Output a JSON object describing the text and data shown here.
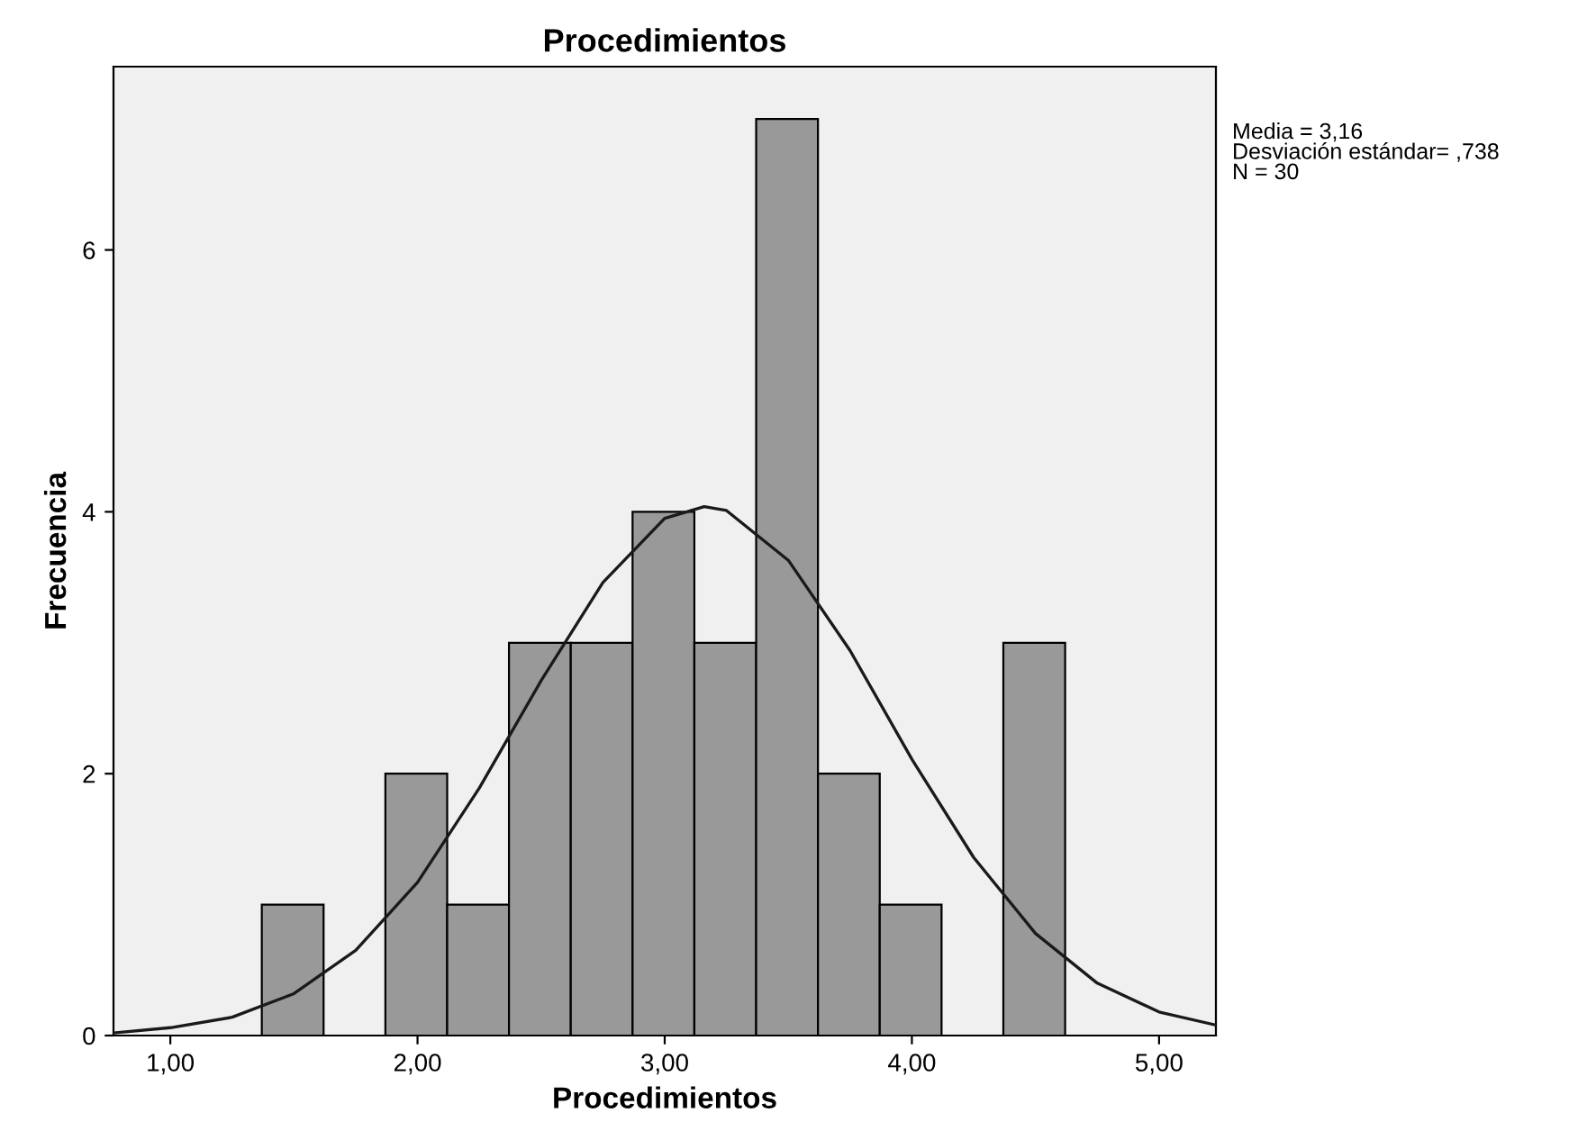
{
  "chart_data": {
    "type": "histogram",
    "title": "Procedimientos",
    "xlabel": "Procedimientos",
    "ylabel": "Frecuencia",
    "bins": [
      1.37,
      1.62,
      1.87,
      2.12,
      2.37,
      2.62,
      2.87,
      3.12,
      3.37,
      3.62,
      3.87,
      4.12,
      4.37,
      4.62
    ],
    "values": [
      1,
      0,
      2,
      1,
      3,
      3,
      4,
      3,
      7,
      2,
      1,
      0,
      3
    ],
    "color": "#999999",
    "series": [
      {
        "type": "line",
        "color": "#1a1a1a",
        "x": [
          0.77,
          1.0,
          1.25,
          1.5,
          1.75,
          2.0,
          2.25,
          2.5,
          2.75,
          3.0,
          3.16,
          3.25,
          3.5,
          3.75,
          4.0,
          4.25,
          4.5,
          4.75,
          5.0,
          5.23
        ],
        "values": [
          0.02,
          0.06,
          0.14,
          0.32,
          0.65,
          1.17,
          1.89,
          2.71,
          3.46,
          3.95,
          4.04,
          4.01,
          3.63,
          2.94,
          2.11,
          1.36,
          0.78,
          0.4,
          0.18,
          0.08
        ]
      }
    ],
    "xlim": [
      0.77,
      5.23
    ],
    "ylim": [
      0,
      7.4
    ],
    "xticks": [
      {
        "value": 1,
        "label": "1,00"
      },
      {
        "value": 2,
        "label": "2,00"
      },
      {
        "value": 3,
        "label": "3,00"
      },
      {
        "value": 4,
        "label": "4,00"
      },
      {
        "value": 5,
        "label": "5,00"
      }
    ],
    "yticks": [
      0,
      2,
      4,
      6
    ],
    "grid": false,
    "legend": false,
    "annotations": [
      "Media = 3,16",
      "Desviación estándar= ,738",
      "N = 30"
    ]
  }
}
